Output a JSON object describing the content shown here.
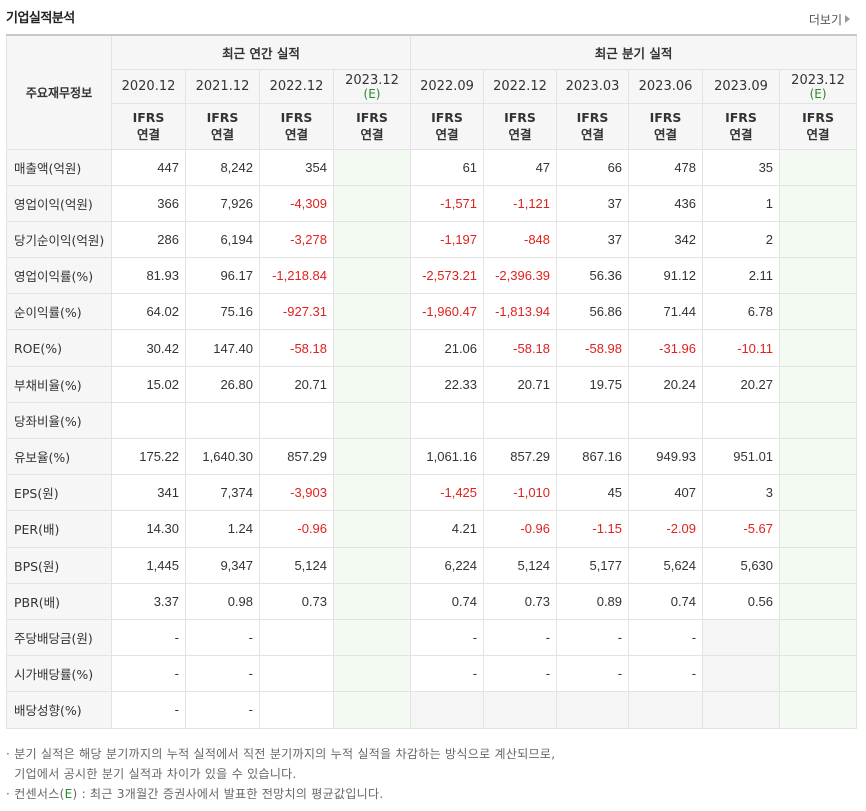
{
  "header": {
    "title": "기업실적분석",
    "more_label": "더보기"
  },
  "table": {
    "label_header": "주요재무정보",
    "group_annual": "최근 연간 실적",
    "group_quarter": "최근 분기 실적",
    "periods": [
      {
        "date": "2020.12",
        "est": "",
        "ifrs1": "IFRS",
        "ifrs2": "연결"
      },
      {
        "date": "2021.12",
        "est": "",
        "ifrs1": "IFRS",
        "ifrs2": "연결"
      },
      {
        "date": "2022.12",
        "est": "",
        "ifrs1": "IFRS",
        "ifrs2": "연결"
      },
      {
        "date": "2023.12",
        "est": "(E)",
        "ifrs1": "IFRS",
        "ifrs2": "연결"
      },
      {
        "date": "2022.09",
        "est": "",
        "ifrs1": "IFRS",
        "ifrs2": "연결"
      },
      {
        "date": "2022.12",
        "est": "",
        "ifrs1": "IFRS",
        "ifrs2": "연결"
      },
      {
        "date": "2023.03",
        "est": "",
        "ifrs1": "IFRS",
        "ifrs2": "연결"
      },
      {
        "date": "2023.06",
        "est": "",
        "ifrs1": "IFRS",
        "ifrs2": "연결"
      },
      {
        "date": "2023.09",
        "est": "",
        "ifrs1": "IFRS",
        "ifrs2": "연결"
      },
      {
        "date": "2023.12",
        "est": "(E)",
        "ifrs1": "IFRS",
        "ifrs2": "연결"
      }
    ],
    "rows": [
      {
        "label": "매출액(억원)",
        "values": [
          "447",
          "8,242",
          "354",
          "",
          "61",
          "47",
          "66",
          "478",
          "35",
          ""
        ]
      },
      {
        "label": "영업이익(억원)",
        "values": [
          "366",
          "7,926",
          "-4,309",
          "",
          "-1,571",
          "-1,121",
          "37",
          "436",
          "1",
          ""
        ]
      },
      {
        "label": "당기순이익(억원)",
        "values": [
          "286",
          "6,194",
          "-3,278",
          "",
          "-1,197",
          "-848",
          "37",
          "342",
          "2",
          ""
        ]
      },
      {
        "label": "영업이익률(%)",
        "values": [
          "81.93",
          "96.17",
          "-1,218.84",
          "",
          "-2,573.21",
          "-2,396.39",
          "56.36",
          "91.12",
          "2.11",
          ""
        ]
      },
      {
        "label": "순이익률(%)",
        "values": [
          "64.02",
          "75.16",
          "-927.31",
          "",
          "-1,960.47",
          "-1,813.94",
          "56.86",
          "71.44",
          "6.78",
          ""
        ]
      },
      {
        "label": "ROE(%)",
        "values": [
          "30.42",
          "147.40",
          "-58.18",
          "",
          "21.06",
          "-58.18",
          "-58.98",
          "-31.96",
          "-10.11",
          ""
        ]
      },
      {
        "label": "부채비율(%)",
        "values": [
          "15.02",
          "26.80",
          "20.71",
          "",
          "22.33",
          "20.71",
          "19.75",
          "20.24",
          "20.27",
          ""
        ]
      },
      {
        "label": "당좌비율(%)",
        "values": [
          "",
          "",
          "",
          "",
          "",
          "",
          "",
          "",
          "",
          ""
        ]
      },
      {
        "label": "유보율(%)",
        "values": [
          "175.22",
          "1,640.30",
          "857.29",
          "",
          "1,061.16",
          "857.29",
          "867.16",
          "949.93",
          "951.01",
          ""
        ]
      },
      {
        "label": "EPS(원)",
        "values": [
          "341",
          "7,374",
          "-3,903",
          "",
          "-1,425",
          "-1,010",
          "45",
          "407",
          "3",
          ""
        ]
      },
      {
        "label": "PER(배)",
        "values": [
          "14.30",
          "1.24",
          "-0.96",
          "",
          "4.21",
          "-0.96",
          "-1.15",
          "-2.09",
          "-5.67",
          ""
        ]
      },
      {
        "label": "BPS(원)",
        "values": [
          "1,445",
          "9,347",
          "5,124",
          "",
          "6,224",
          "5,124",
          "5,177",
          "5,624",
          "5,630",
          ""
        ]
      },
      {
        "label": "PBR(배)",
        "values": [
          "3.37",
          "0.98",
          "0.73",
          "",
          "0.74",
          "0.73",
          "0.89",
          "0.74",
          "0.56",
          ""
        ]
      },
      {
        "label": "주당배당금(원)",
        "values": [
          "-",
          "-",
          "",
          "",
          "-",
          "-",
          "-",
          "-",
          "",
          ""
        ]
      },
      {
        "label": "시가배당률(%)",
        "values": [
          "-",
          "-",
          "",
          "",
          "-",
          "-",
          "-",
          "-",
          "",
          ""
        ]
      },
      {
        "label": "배당성향(%)",
        "values": [
          "-",
          "-",
          "",
          "",
          "",
          "",
          "",
          "",
          "",
          ""
        ]
      }
    ]
  },
  "notes": {
    "line1": "· 분기 실적은 해당 분기까지의 누적 실적에서 직전 분기까지의 누적 실적을 차감하는 방식으로 계산되므로,",
    "line2": "  기업에서 공시한 분기 실적과 차이가 있을 수 있습니다.",
    "line3_prefix": "· 컨센서스(",
    "line3_e": "E",
    "line3_suffix": ") : 최근 3개월간 증권사에서 발표한 전망치의 평균값입니다."
  },
  "colors": {
    "negative": "#e0211f",
    "ifrs": "#ec6d0c",
    "estimate": "#2a8a2a"
  }
}
